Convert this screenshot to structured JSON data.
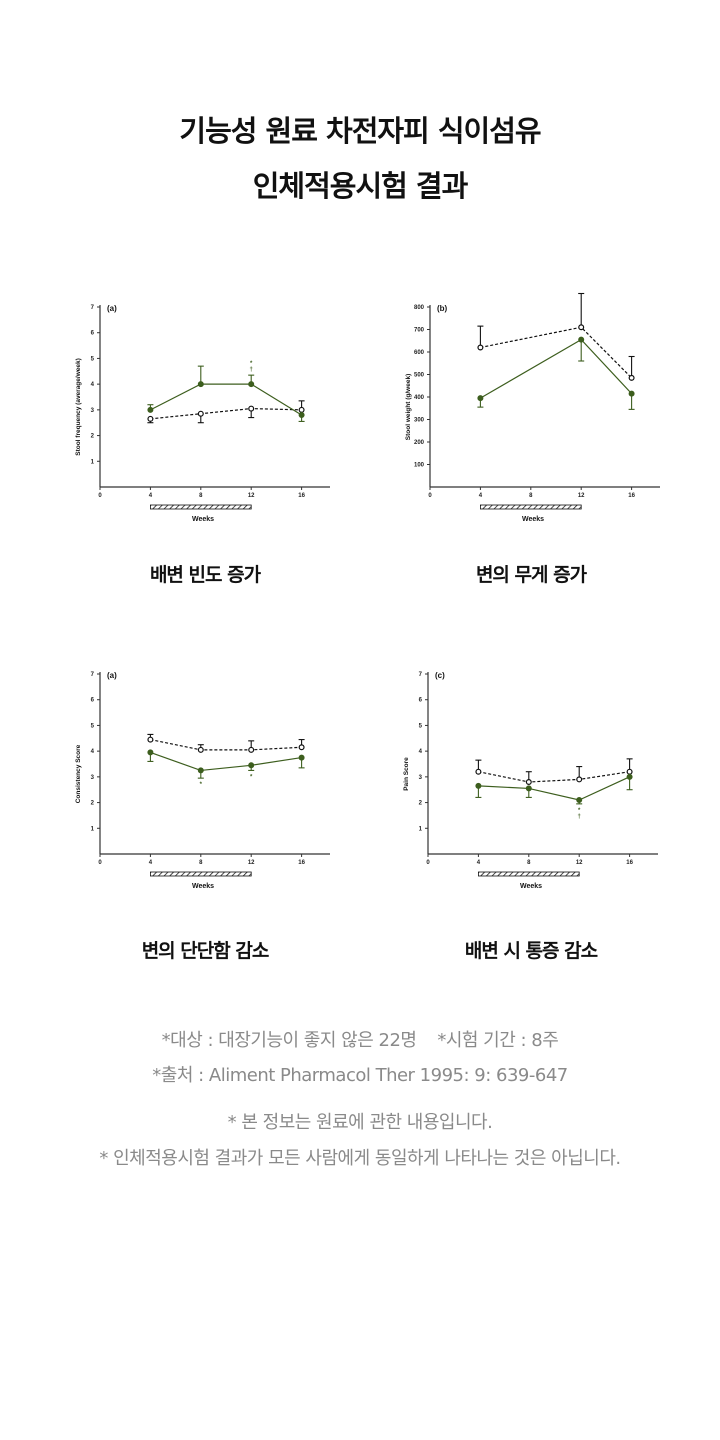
{
  "header": {
    "title_line1": "기능성 원료 차전자피 식이섬유",
    "title_line2": "인체적용시험 결과"
  },
  "colors": {
    "treatment": "#3d5e1e",
    "control": "#111111",
    "note_text": "#8a8a8a"
  },
  "chart_data": [
    {
      "type": "line",
      "panel_label": "(a)",
      "caption": "배변 빈도 증가",
      "xlabel": "Weeks",
      "ylabel": "Stool frequency (average/week)",
      "x_ticks": [
        "0",
        "4",
        "8",
        "12",
        "16"
      ],
      "y_ticks": [
        "1",
        "2",
        "3",
        "4",
        "5",
        "6",
        "7"
      ],
      "xlim": [
        0,
        18
      ],
      "ylim": [
        0,
        7
      ],
      "treatment_period": [
        4,
        12
      ],
      "series": [
        {
          "style": "filled-solid",
          "x": [
            4,
            8,
            12,
            16
          ],
          "y": [
            3.0,
            4.0,
            4.0,
            2.8
          ],
          "error_end": [
            3.2,
            4.7,
            4.35,
            2.55
          ]
        },
        {
          "style": "open-dashed",
          "x": [
            4,
            8,
            12,
            16
          ],
          "y": [
            2.65,
            2.85,
            3.05,
            3.0
          ],
          "error_end": [
            2.5,
            2.5,
            2.7,
            3.35
          ]
        }
      ],
      "annotations": [
        {
          "x": 12,
          "text": "*\n†",
          "position": "above"
        }
      ]
    },
    {
      "type": "line",
      "panel_label": "(b)",
      "caption": "변의 무게 증가",
      "xlabel": "Weeks",
      "ylabel": "Stool weight (g/week)",
      "x_ticks": [
        "0",
        "4",
        "8",
        "12",
        "16"
      ],
      "y_ticks": [
        "100",
        "200",
        "300",
        "400",
        "500",
        "600",
        "700",
        "800"
      ],
      "xlim": [
        0,
        18
      ],
      "ylim": [
        0,
        800
      ],
      "treatment_period": [
        4,
        12
      ],
      "series": [
        {
          "style": "filled-solid",
          "x": [
            4,
            12,
            16
          ],
          "y": [
            395,
            655,
            415
          ],
          "error_end": [
            355,
            560,
            345
          ]
        },
        {
          "style": "open-dashed",
          "x": [
            4,
            12,
            16
          ],
          "y": [
            620,
            710,
            485
          ],
          "error_end": [
            715,
            860,
            580
          ]
        }
      ],
      "annotations": []
    },
    {
      "type": "line",
      "panel_label": "(a)",
      "caption": "변의 단단함 감소",
      "xlabel": "Weeks",
      "ylabel": "Consistency Score",
      "x_ticks": [
        "0",
        "4",
        "8",
        "12",
        "16"
      ],
      "y_ticks": [
        "1",
        "2",
        "3",
        "4",
        "5",
        "6",
        "7"
      ],
      "xlim": [
        0,
        18
      ],
      "ylim": [
        0,
        7
      ],
      "treatment_period": [
        4,
        12
      ],
      "series": [
        {
          "style": "filled-solid",
          "x": [
            4,
            8,
            12,
            16
          ],
          "y": [
            3.95,
            3.25,
            3.45,
            3.75
          ],
          "error_end": [
            3.6,
            2.95,
            3.25,
            3.35
          ]
        },
        {
          "style": "open-dashed",
          "x": [
            4,
            8,
            12,
            16
          ],
          "y": [
            4.45,
            4.05,
            4.05,
            4.15
          ],
          "error_end": [
            4.65,
            4.25,
            4.4,
            4.45
          ]
        }
      ],
      "annotations": [
        {
          "x": 8,
          "text": "*",
          "position": "below"
        },
        {
          "x": 12,
          "text": "*",
          "position": "below"
        }
      ]
    },
    {
      "type": "line",
      "panel_label": "(c)",
      "caption": "배변 시 통증 감소",
      "xlabel": "Weeks",
      "ylabel": "Pain Score",
      "x_ticks": [
        "0",
        "4",
        "8",
        "12",
        "16"
      ],
      "y_ticks": [
        "1",
        "2",
        "3",
        "4",
        "5",
        "6",
        "7"
      ],
      "xlim": [
        0,
        18
      ],
      "ylim": [
        0,
        7
      ],
      "treatment_period": [
        4,
        12
      ],
      "series": [
        {
          "style": "filled-solid",
          "x": [
            4,
            8,
            12,
            16
          ],
          "y": [
            2.65,
            2.55,
            2.1,
            3.0
          ],
          "error_end": [
            2.2,
            2.2,
            1.95,
            2.5
          ]
        },
        {
          "style": "open-dashed",
          "x": [
            4,
            8,
            12,
            16
          ],
          "y": [
            3.2,
            2.8,
            2.9,
            3.2
          ],
          "error_end": [
            3.65,
            3.2,
            3.4,
            3.7
          ]
        }
      ],
      "annotations": [
        {
          "x": 12,
          "text": "*\n†",
          "position": "below"
        }
      ]
    }
  ],
  "notes": {
    "line1": "*대상 : 대장기능이 좋지 않은 22명    *시험 기간 : 8주",
    "line2": "*출처 : Aliment Pharmacol Ther 1995: 9: 639-647",
    "line3": "* 본 정보는 원료에 관한 내용입니다.",
    "line4": "* 인체적용시험 결과가 모든 사람에게 동일하게 나타나는 것은 아닙니다."
  }
}
